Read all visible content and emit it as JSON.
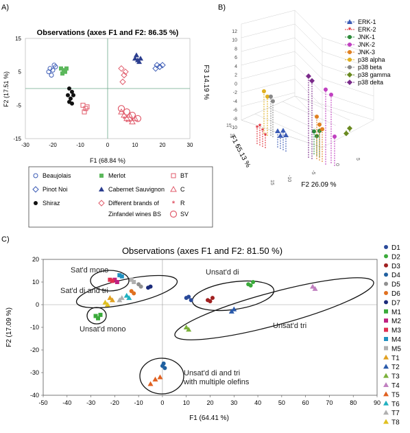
{
  "panels": {
    "a": {
      "label": "A)",
      "title": "Observations (axes F1 and F2: 86.35 %)",
      "xlabel": "F1 (68.84 %)",
      "ylabel": "F2 (17.51 %)",
      "xticks": [
        "-30",
        "-20",
        "-10",
        "0",
        "10",
        "20",
        "30"
      ],
      "yticks": [
        "15",
        "5",
        "-5",
        "-15"
      ],
      "legend": [
        {
          "marker": "circle-open",
          "color": "#3b5bb5",
          "label": "Beaujolais"
        },
        {
          "marker": "square",
          "color": "#5cb85c",
          "label": "Merlot"
        },
        {
          "marker": "square-open",
          "color": "#e05a6a",
          "label": "BT"
        },
        {
          "marker": "diamond-open",
          "color": "#3b5bb5",
          "label": "Pinot Noi"
        },
        {
          "marker": "triangle",
          "color": "#2c3e8f",
          "label": "Cabernet Sauvignon"
        },
        {
          "marker": "triangle-open",
          "color": "#e05a6a",
          "label": "C"
        },
        {
          "marker": "dot",
          "color": "#111111",
          "label": "Shiraz"
        },
        {
          "marker": "diamond-open",
          "color": "#e05a6a",
          "label": "Different brands of"
        },
        {
          "marker": "star",
          "color": "#e05a6a",
          "label": "R"
        },
        {
          "marker": "none",
          "color": "#111111",
          "label": "Zinfandel wines BS"
        },
        {
          "marker": "circle-open-big",
          "color": "#e05a6a",
          "label": "SV"
        }
      ]
    },
    "b": {
      "label": "B)",
      "xlabel": "F2 26.09 %",
      "ylabel": "F1 55.13 %",
      "zlabel": "F3 14.19 %",
      "zticks": [
        "12",
        "10",
        "8",
        "6",
        "4",
        "2",
        "0",
        "-2",
        "-4",
        "-6",
        "-8",
        "-10"
      ],
      "legend": [
        {
          "label": "ERK-1",
          "color": "#3b5bb5",
          "marker": "triangle"
        },
        {
          "label": "ERK-2",
          "color": "#e0303a",
          "marker": "star"
        },
        {
          "label": "JNK-1",
          "color": "#2e8b3a",
          "marker": "dot"
        },
        {
          "label": "JNK-2",
          "color": "#c040c0",
          "marker": "dot"
        },
        {
          "label": "JNK-3",
          "color": "#e08020",
          "marker": "dot"
        },
        {
          "label": "p38 alpha",
          "color": "#e0b020",
          "marker": "dot"
        },
        {
          "label": "p38 beta",
          "color": "#888888",
          "marker": "dot"
        },
        {
          "label": "p38 gamma",
          "color": "#6a8a20",
          "marker": "diamond"
        },
        {
          "label": "p38 delta",
          "color": "#7a2a8a",
          "marker": "diamond"
        }
      ]
    },
    "c": {
      "label": "C)",
      "title": "Observations (axes F1 and F2: 81.50 %)",
      "xlabel": "F1 (64.41 %)",
      "ylabel": "F2 (17.09 %)",
      "annotations": [
        "Sat'd mono",
        "Sat'd di and tri",
        "Unsat'd mono",
        "Unsat'd di",
        "Unsat'd tri",
        "Unsat'd di and tri",
        "with multiple olefins"
      ],
      "legend": [
        {
          "label": "D1",
          "color": "#2a4a9a",
          "marker": "dot"
        },
        {
          "label": "D2",
          "color": "#3aaa3a",
          "marker": "dot"
        },
        {
          "label": "D3",
          "color": "#a02020",
          "marker": "dot"
        },
        {
          "label": "D4",
          "color": "#2060a0",
          "marker": "dot"
        },
        {
          "label": "D5",
          "color": "#909090",
          "marker": "dot"
        },
        {
          "label": "D6",
          "color": "#e07020",
          "marker": "dot"
        },
        {
          "label": "D7",
          "color": "#1a2a7a",
          "marker": "dot"
        },
        {
          "label": "M1",
          "color": "#3aaa3a",
          "marker": "square"
        },
        {
          "label": "M2",
          "color": "#c02080",
          "marker": "square"
        },
        {
          "label": "M3",
          "color": "#e03050",
          "marker": "square"
        },
        {
          "label": "M4",
          "color": "#2090c0",
          "marker": "square"
        },
        {
          "label": "M5",
          "color": "#b0b0b0",
          "marker": "square"
        },
        {
          "label": "T1",
          "color": "#e0a020",
          "marker": "triangle"
        },
        {
          "label": "T2",
          "color": "#2a5aaa",
          "marker": "triangle"
        },
        {
          "label": "T3",
          "color": "#7ab03a",
          "marker": "triangle"
        },
        {
          "label": "T4",
          "color": "#c080c0",
          "marker": "triangle"
        },
        {
          "label": "T5",
          "color": "#e06020",
          "marker": "triangle"
        },
        {
          "label": "T6",
          "color": "#20b0c0",
          "marker": "triangle"
        },
        {
          "label": "T7",
          "color": "#b0b0b0",
          "marker": "triangle"
        },
        {
          "label": "T8",
          "color": "#e0c020",
          "marker": "triangle"
        }
      ]
    }
  },
  "chart_data": [
    {
      "type": "scatter",
      "title": "Observations (axes F1 and F2: 86.35 %)",
      "xlabel": "F1 (68.84 %)",
      "ylabel": "F2 (17.51 %)",
      "xlim": [
        -30,
        30
      ],
      "ylim": [
        -15,
        15
      ],
      "series": [
        {
          "name": "Beaujolais",
          "color": "#3b5bb5",
          "marker": "circle-open",
          "points": [
            [
              -21,
              6
            ],
            [
              -20,
              5.5
            ],
            [
              -19.5,
              7
            ],
            [
              -20.5,
              4
            ],
            [
              -19,
              6.5
            ],
            [
              -21.5,
              5
            ]
          ]
        },
        {
          "name": "Merlot",
          "color": "#5cb85c",
          "marker": "square",
          "points": [
            [
              -17,
              6
            ],
            [
              -16,
              5.5
            ],
            [
              -15,
              6
            ],
            [
              -16.5,
              4.5
            ],
            [
              -15.5,
              5
            ]
          ]
        },
        {
          "name": "Pinot Noi",
          "color": "#3b5bb5",
          "marker": "diamond-open",
          "points": [
            [
              18,
              7
            ],
            [
              19,
              6.5
            ],
            [
              17.5,
              6
            ],
            [
              20,
              7
            ]
          ]
        },
        {
          "name": "Cabernet Sauvignon",
          "color": "#2c3e8f",
          "marker": "triangle",
          "points": [
            [
              10,
              9
            ],
            [
              11,
              8.5
            ],
            [
              12,
              9
            ],
            [
              10.5,
              10
            ],
            [
              11.5,
              8
            ]
          ]
        },
        {
          "name": "Shiraz",
          "color": "#111111",
          "marker": "dot",
          "points": [
            [
              -14,
              0
            ],
            [
              -13,
              -1
            ],
            [
              -14.5,
              -2
            ],
            [
              -13.5,
              -3
            ],
            [
              -12.5,
              -2
            ],
            [
              -14,
              -4
            ],
            [
              -13,
              -4.5
            ]
          ]
        },
        {
          "name": "BT",
          "color": "#e05a6a",
          "marker": "square-open",
          "points": [
            [
              -9,
              -5
            ],
            [
              -8,
              -6
            ],
            [
              -7.5,
              -5.5
            ],
            [
              -8.5,
              -7
            ]
          ]
        },
        {
          "name": "Different brands of Zinfandel wines BS",
          "color": "#e05a6a",
          "marker": "diamond-open",
          "points": [
            [
              5,
              6
            ],
            [
              6,
              4
            ],
            [
              5.5,
              2
            ],
            [
              6.5,
              5
            ]
          ]
        },
        {
          "name": "C",
          "color": "#e05a6a",
          "marker": "triangle-open",
          "points": [
            [
              5,
              -7
            ],
            [
              6,
              -8
            ],
            [
              7,
              -9
            ],
            [
              8,
              -8
            ],
            [
              9,
              -10
            ],
            [
              10,
              -9
            ]
          ]
        },
        {
          "name": "R",
          "color": "#e05a6a",
          "marker": "star",
          "points": [
            [
              6,
              -9
            ],
            [
              7,
              -10
            ],
            [
              8,
              -10
            ],
            [
              9,
              -9.5
            ]
          ]
        },
        {
          "name": "SV",
          "color": "#e05a6a",
          "marker": "circle-open-big",
          "points": [
            [
              5,
              -6
            ],
            [
              7,
              -7
            ],
            [
              9,
              -8
            ],
            [
              11,
              -9
            ]
          ]
        }
      ]
    },
    {
      "type": "scatter",
      "xlabel": "F2 26.09 %",
      "ylabel": "F1 55.13 %",
      "zlabel": "F3 14.19 %",
      "zlim": [
        -10,
        12
      ],
      "series": [
        {
          "name": "ERK-1",
          "color": "#3b5bb5",
          "z": [
            2,
            1.5,
            2.5,
            2
          ]
        },
        {
          "name": "ERK-2",
          "color": "#e0303a",
          "z": [
            2,
            2.5,
            2,
            1.5
          ]
        },
        {
          "name": "JNK-1",
          "color": "#2e8b3a",
          "z": [
            3,
            2.5,
            3.5
          ]
        },
        {
          "name": "JNK-2",
          "color": "#c040c0",
          "z": [
            11,
            10,
            4
          ]
        },
        {
          "name": "JNK-3",
          "color": "#e08020",
          "z": [
            6,
            5,
            4.5
          ]
        },
        {
          "name": "p38 alpha",
          "color": "#e0b020",
          "z": [
            6,
            5.5
          ]
        },
        {
          "name": "p38 beta",
          "color": "#888888",
          "z": [
            5.5,
            5
          ]
        },
        {
          "name": "p38 gamma",
          "color": "#6a8a20",
          "z": [
            -1,
            0
          ]
        },
        {
          "name": "p38 delta",
          "color": "#7a2a8a",
          "z": [
            12,
            11.5
          ]
        }
      ]
    },
    {
      "type": "scatter",
      "title": "Observations (axes F1 and F2: 81.50 %)",
      "xlabel": "F1 (64.41 %)",
      "ylabel": "F2 (17.09 %)",
      "xlim": [
        -50,
        90
      ],
      "ylim": [
        -40,
        20
      ],
      "series": [
        {
          "name": "D1",
          "color": "#2a4a9a",
          "marker": "dot",
          "points": [
            [
              10,
              3
            ],
            [
              12,
              2
            ],
            [
              11,
              3.5
            ]
          ]
        },
        {
          "name": "D2",
          "color": "#3aaa3a",
          "marker": "dot",
          "points": [
            [
              36,
              9
            ],
            [
              38,
              10
            ],
            [
              37,
              8.5
            ]
          ]
        },
        {
          "name": "D3",
          "color": "#a02020",
          "marker": "dot",
          "points": [
            [
              19,
              2
            ],
            [
              21,
              3
            ],
            [
              20,
              1.5
            ]
          ]
        },
        {
          "name": "D4",
          "color": "#2060a0",
          "marker": "dot",
          "points": [
            [
              0,
              -27
            ],
            [
              1,
              -28
            ],
            [
              0.5,
              -26
            ]
          ]
        },
        {
          "name": "D5",
          "color": "#909090",
          "marker": "dot",
          "points": [
            [
              -10,
              9
            ],
            [
              -9,
              8
            ]
          ]
        },
        {
          "name": "D6",
          "color": "#e07020",
          "marker": "dot",
          "points": [
            [
              -13,
              6
            ],
            [
              -12,
              5
            ]
          ]
        },
        {
          "name": "D7",
          "color": "#1a2a7a",
          "marker": "dot",
          "points": [
            [
              -5,
              8
            ],
            [
              -6,
              7.5
            ]
          ]
        },
        {
          "name": "M1",
          "color": "#3aaa3a",
          "marker": "square",
          "points": [
            [
              -28,
              -5
            ],
            [
              -27,
              -6
            ],
            [
              -26,
              -4.5
            ]
          ]
        },
        {
          "name": "M2",
          "color": "#c02080",
          "marker": "square",
          "points": [
            [
              -20,
              11
            ],
            [
              -19,
              10
            ]
          ]
        },
        {
          "name": "M3",
          "color": "#e03050",
          "marker": "square",
          "points": [
            [
              -22,
              11
            ],
            [
              -21,
              10.5
            ]
          ]
        },
        {
          "name": "M4",
          "color": "#2090c0",
          "marker": "square",
          "points": [
            [
              -18,
              13
            ],
            [
              -17,
              12.5
            ]
          ]
        },
        {
          "name": "M5",
          "color": "#b0b0b0",
          "marker": "square",
          "points": [
            [
              -13,
              11
            ],
            [
              -12,
              10
            ]
          ]
        },
        {
          "name": "T1",
          "color": "#e0a020",
          "marker": "triangle",
          "points": [
            [
              -22,
              3
            ],
            [
              -21,
              2
            ]
          ]
        },
        {
          "name": "T2",
          "color": "#2a5aaa",
          "marker": "triangle",
          "points": [
            [
              29,
              -3
            ],
            [
              30,
              -2
            ]
          ]
        },
        {
          "name": "T3",
          "color": "#7ab03a",
          "marker": "triangle",
          "points": [
            [
              10,
              -10
            ],
            [
              11,
              -11
            ]
          ]
        },
        {
          "name": "T4",
          "color": "#c080c0",
          "marker": "triangle",
          "points": [
            [
              63,
              8
            ],
            [
              64,
              7
            ]
          ]
        },
        {
          "name": "T5",
          "color": "#e06020",
          "marker": "triangle",
          "points": [
            [
              -5,
              -35
            ],
            [
              -3,
              -33
            ],
            [
              -1,
              -32
            ]
          ]
        },
        {
          "name": "T6",
          "color": "#20b0c0",
          "marker": "triangle",
          "points": [
            [
              -15,
              4
            ],
            [
              -14,
              3
            ]
          ]
        },
        {
          "name": "T7",
          "color": "#b0b0b0",
          "marker": "triangle",
          "points": [
            [
              -18,
              2
            ],
            [
              -17,
              3
            ]
          ]
        },
        {
          "name": "T8",
          "color": "#e0c020",
          "marker": "triangle",
          "points": [
            [
              -24,
              1
            ],
            [
              -23,
              0
            ]
          ]
        }
      ]
    }
  ]
}
